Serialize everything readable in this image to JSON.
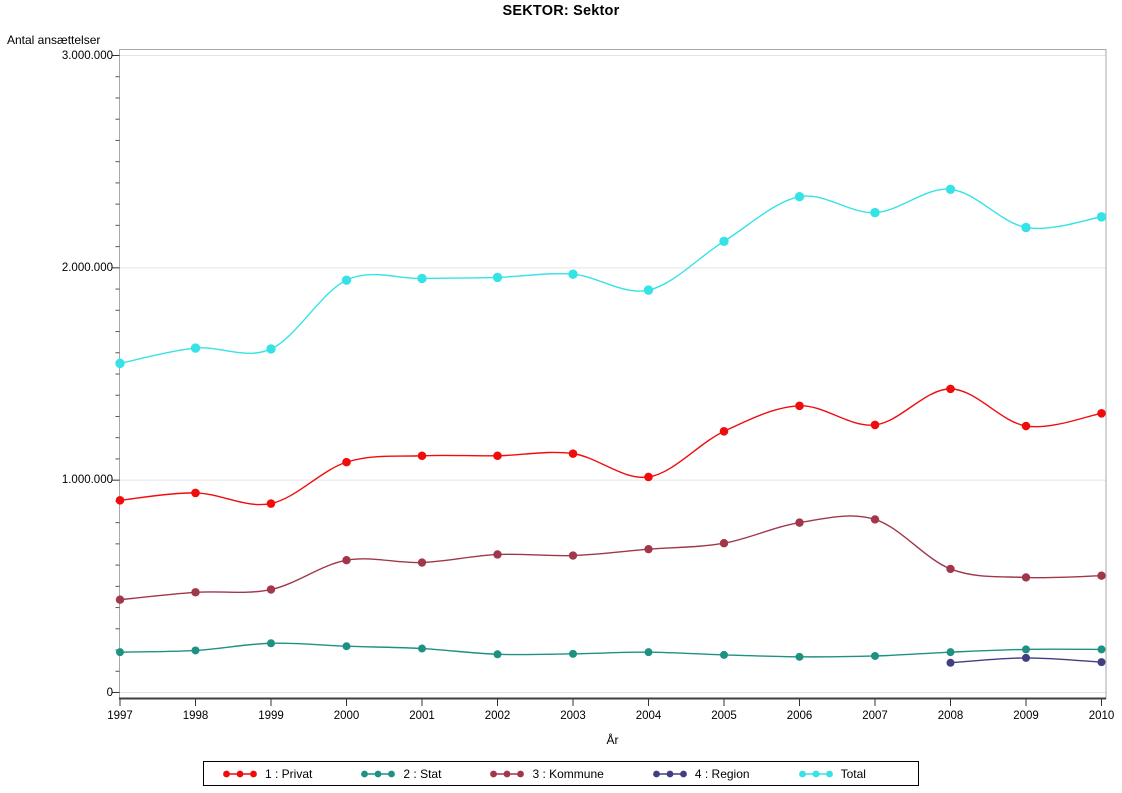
{
  "title": "SEKTOR: Sektor",
  "chart_data": {
    "type": "line",
    "title": "SEKTOR: Sektor",
    "xlabel": "År",
    "ylabel": "Antal ansættelser",
    "x": [
      1997,
      1998,
      1999,
      2000,
      2001,
      2002,
      2003,
      2004,
      2005,
      2006,
      2007,
      2008,
      2009,
      2010
    ],
    "ylim": [
      0,
      3000000
    ],
    "y_tick_labels": [
      "0",
      "1.000.000",
      "2.000.000",
      "3.000.000"
    ],
    "y_major_step": 1000000,
    "y_minor_step": 100000,
    "grid": "horizontal-major",
    "legend_position": "bottom",
    "interpolation": "spline",
    "series": [
      {
        "name": "1 : Privat",
        "color": "#f10c0c",
        "values": [
          905000,
          940000,
          890000,
          1085000,
          1115000,
          1115000,
          1125000,
          1015000,
          1230000,
          1350000,
          1260000,
          1430000,
          1255000,
          1315000
        ]
      },
      {
        "name": "2 : Stat",
        "color": "#1e9183",
        "values": [
          190000,
          198000,
          232000,
          218000,
          207000,
          180000,
          182000,
          190000,
          177000,
          168000,
          172000,
          190000,
          203000,
          203000
        ]
      },
      {
        "name": "3 : Kommune",
        "color": "#a0374b",
        "values": [
          437000,
          472000,
          485000,
          623000,
          612000,
          650000,
          645000,
          675000,
          703000,
          800000,
          815000,
          582000,
          542000,
          550000
        ]
      },
      {
        "name": "4 : Region",
        "color": "#413e82",
        "values": [
          null,
          null,
          null,
          null,
          null,
          null,
          null,
          null,
          null,
          null,
          null,
          140000,
          163000,
          143000
        ]
      },
      {
        "name": "Total",
        "color": "#35e3e6",
        "values": [
          1550000,
          1622000,
          1618000,
          1942000,
          1950000,
          1955000,
          1970000,
          1895000,
          2125000,
          2335000,
          2260000,
          2370000,
          2190000,
          2240000
        ]
      }
    ]
  }
}
